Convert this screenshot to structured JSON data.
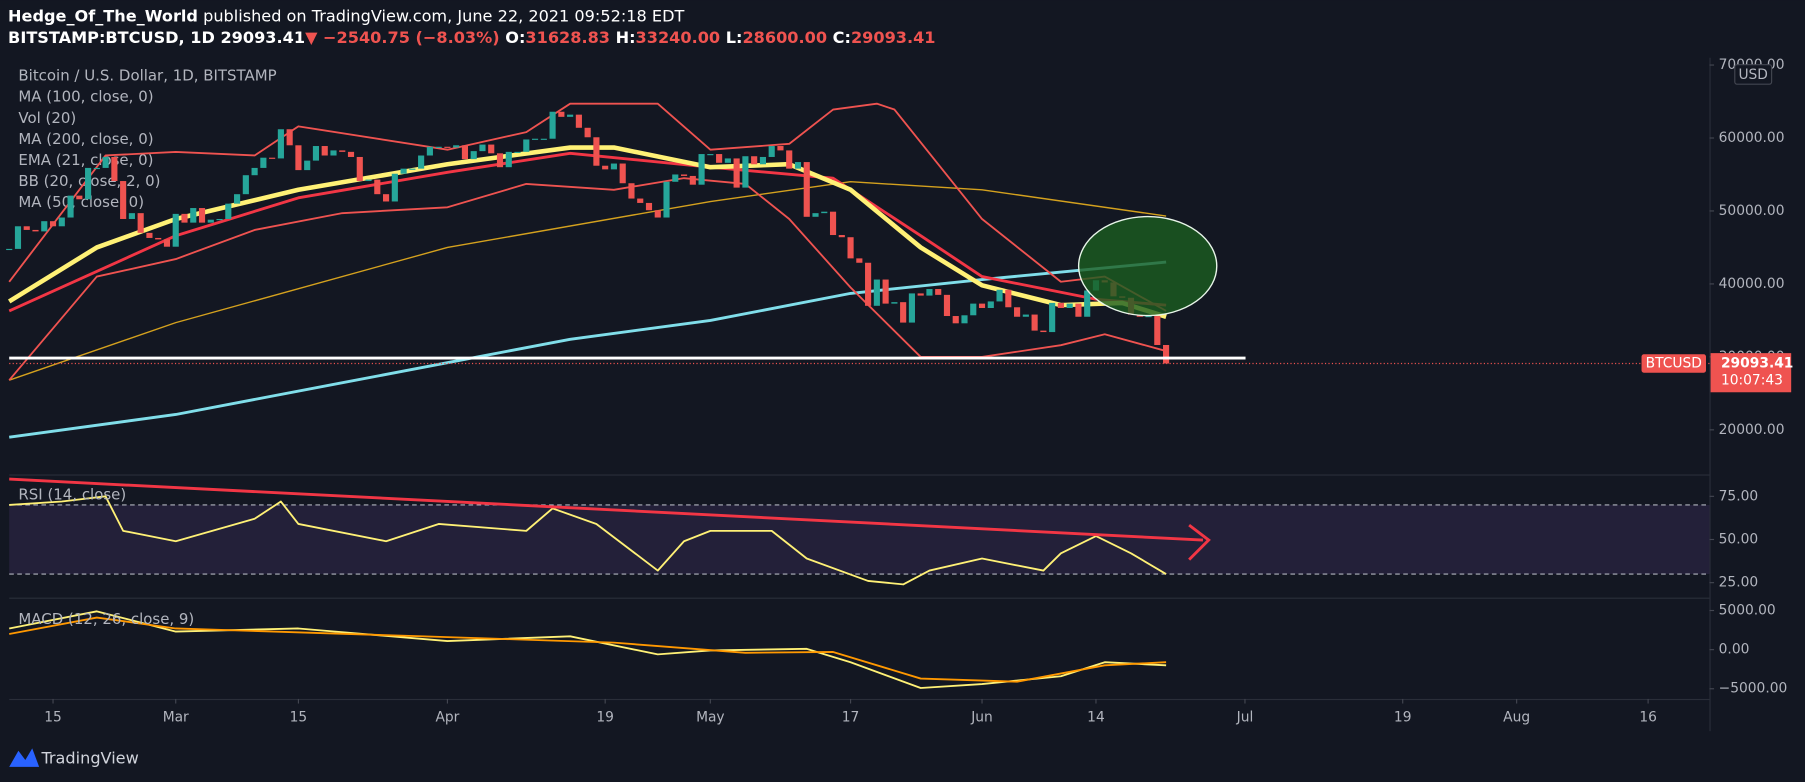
{
  "header": {
    "author": "Hedge_Of_The_World",
    "published": " published on TradingView.com, June 22, 2021 09:52:18 EDT",
    "symbol": "BITSTAMP:BTCUSD, 1D",
    "last": "29093.41",
    "change": "▼ −2540.75 (−8.03%)",
    "o_label": "O:",
    "o": "31628.83",
    "h_label": "H:",
    "h": "33240.00",
    "l_label": "L:",
    "l": "28600.00",
    "c_label": "C:",
    "c": "29093.41"
  },
  "footer": {
    "brand": "TradingView"
  },
  "chart_data": {
    "type": "candlestick",
    "legend": [
      "Bitcoin / U.S. Dollar, 1D, BITSTAMP",
      "MA (100, close, 0)",
      "Vol (20)",
      "MA (200, close, 0)",
      "EMA (21, close, 0)",
      "BB (20, close, 2, 0)",
      "MA (50, close, 0)"
    ],
    "currency": "USD",
    "price_tag": {
      "symbol": "BTCUSD",
      "value": 29093.41,
      "label": "29093.41",
      "countdown": "10:07:43"
    },
    "up_color": "#26a69a",
    "down_color": "#ef5350",
    "x": [
      "2021-02-10",
      "2021-02-11",
      "2021-02-12",
      "2021-02-13",
      "2021-02-14",
      "2021-02-15",
      "2021-02-16",
      "2021-02-17",
      "2021-02-18",
      "2021-02-19",
      "2021-02-20",
      "2021-02-21",
      "2021-02-22",
      "2021-02-23",
      "2021-02-24",
      "2021-02-25",
      "2021-02-26",
      "2021-02-27",
      "2021-02-28",
      "2021-03-01",
      "2021-03-02",
      "2021-03-03",
      "2021-03-04",
      "2021-03-05",
      "2021-03-06",
      "2021-03-07",
      "2021-03-08",
      "2021-03-09",
      "2021-03-10",
      "2021-03-11",
      "2021-03-12",
      "2021-03-13",
      "2021-03-14",
      "2021-03-15",
      "2021-03-16",
      "2021-03-17",
      "2021-03-18",
      "2021-03-19",
      "2021-03-20",
      "2021-03-21",
      "2021-03-22",
      "2021-03-23",
      "2021-03-24",
      "2021-03-25",
      "2021-03-26",
      "2021-03-27",
      "2021-03-28",
      "2021-03-29",
      "2021-03-30",
      "2021-03-31",
      "2021-04-01",
      "2021-04-02",
      "2021-04-03",
      "2021-04-04",
      "2021-04-05",
      "2021-04-06",
      "2021-04-07",
      "2021-04-08",
      "2021-04-09",
      "2021-04-10",
      "2021-04-11",
      "2021-04-12",
      "2021-04-13",
      "2021-04-14",
      "2021-04-15",
      "2021-04-16",
      "2021-04-17",
      "2021-04-18",
      "2021-04-19",
      "2021-04-20",
      "2021-04-21",
      "2021-04-22",
      "2021-04-23",
      "2021-04-24",
      "2021-04-25",
      "2021-04-26",
      "2021-04-27",
      "2021-04-28",
      "2021-04-29",
      "2021-04-30",
      "2021-05-01",
      "2021-05-02",
      "2021-05-03",
      "2021-05-04",
      "2021-05-05",
      "2021-05-06",
      "2021-05-07",
      "2021-05-08",
      "2021-05-09",
      "2021-05-10",
      "2021-05-11",
      "2021-05-12",
      "2021-05-13",
      "2021-05-14",
      "2021-05-15",
      "2021-05-16",
      "2021-05-17",
      "2021-05-18",
      "2021-05-19",
      "2021-05-20",
      "2021-05-21",
      "2021-05-22",
      "2021-05-23",
      "2021-05-24",
      "2021-05-25",
      "2021-05-26",
      "2021-05-27",
      "2021-05-28",
      "2021-05-29",
      "2021-05-30",
      "2021-05-31",
      "2021-06-01",
      "2021-06-02",
      "2021-06-03",
      "2021-06-04",
      "2021-06-05",
      "2021-06-06",
      "2021-06-07",
      "2021-06-08",
      "2021-06-09",
      "2021-06-10",
      "2021-06-11",
      "2021-06-12",
      "2021-06-13",
      "2021-06-14",
      "2021-06-15",
      "2021-06-16",
      "2021-06-17",
      "2021-06-18",
      "2021-06-19",
      "2021-06-20",
      "2021-06-21",
      "2021-06-22"
    ],
    "close": [
      44800,
      47900,
      47400,
      47200,
      48600,
      47900,
      49100,
      52100,
      51600,
      55900,
      55900,
      57400,
      54100,
      48900,
      49700,
      47000,
      46300,
      46100,
      45100,
      49600,
      48400,
      50400,
      48400,
      48800,
      48900,
      51000,
      52300,
      54900,
      55900,
      57300,
      57200,
      61200,
      59000,
      55600,
      56900,
      58900,
      57600,
      58300,
      58100,
      57400,
      54100,
      54300,
      52300,
      51300,
      55100,
      55800,
      55800,
      57600,
      58800,
      58800,
      58700,
      59000,
      57100,
      58200,
      59100,
      57900,
      56000,
      58100,
      58100,
      59800,
      59900,
      59900,
      63600,
      62900,
      63200,
      61400,
      60100,
      56200,
      55700,
      56500,
      53800,
      51700,
      51100,
      50100,
      49100,
      54000,
      55000,
      54800,
      53600,
      57800,
      57800,
      56600,
      57200,
      53200,
      57500,
      56400,
      57400,
      58900,
      58300,
      55800,
      56700,
      49200,
      49700,
      49900,
      46700,
      46400,
      43500,
      42900,
      37000,
      40600,
      37300,
      37500,
      34700,
      38700,
      38400,
      39300,
      38500,
      35600,
      34600,
      35700,
      37300,
      36700,
      37600,
      39200,
      36800,
      35500,
      35800,
      33600,
      33400,
      37400,
      36700,
      37300,
      35500,
      39100,
      40500,
      40200,
      38300,
      38100,
      35800,
      35500,
      35600,
      31628.83,
      29093.41
    ],
    "lines": [
      {
        "color": "#80deea",
        "width": 2.5,
        "x": [
          "2021-02-10",
          "2021-03-01",
          "2021-04-01",
          "2021-04-15",
          "2021-05-01",
          "2021-05-17",
          "2021-06-01",
          "2021-06-22"
        ],
        "values": [
          19000,
          22100,
          29200,
          32400,
          35000,
          38700,
          40600,
          43000
        ]
      },
      {
        "color": "#d4a11e",
        "width": 1.2,
        "x": [
          "2021-02-10",
          "2021-03-01",
          "2021-04-01",
          "2021-05-01",
          "2021-05-17",
          "2021-06-01",
          "2021-06-22"
        ],
        "values": [
          26800,
          34700,
          45000,
          51300,
          54000,
          52900,
          49300
        ]
      },
      {
        "color": "#ef5350",
        "width": 1.6,
        "x": [
          "2021-02-10",
          "2021-02-21",
          "2021-03-01",
          "2021-03-10",
          "2021-03-15",
          "2021-04-01",
          "2021-04-10",
          "2021-04-15",
          "2021-04-25",
          "2021-05-01",
          "2021-05-10",
          "2021-05-15",
          "2021-05-20",
          "2021-05-22",
          "2021-06-01",
          "2021-06-10",
          "2021-06-15",
          "2021-06-22"
        ],
        "values": [
          40300,
          57600,
          58100,
          57600,
          61600,
          58400,
          60800,
          64700,
          64700,
          58400,
          59200,
          63900,
          64700,
          63900,
          48900,
          40300,
          41000,
          36300
        ]
      },
      {
        "color": "#ef5350",
        "width": 1.6,
        "x": [
          "2021-02-10",
          "2021-02-20",
          "2021-03-01",
          "2021-03-10",
          "2021-03-20",
          "2021-04-01",
          "2021-04-10",
          "2021-04-20",
          "2021-04-28",
          "2021-05-05",
          "2021-05-10",
          "2021-05-17",
          "2021-05-25",
          "2021-06-01",
          "2021-06-10",
          "2021-06-15",
          "2021-06-22"
        ],
        "values": [
          26800,
          41000,
          43400,
          47400,
          49700,
          50500,
          53700,
          52900,
          54500,
          53700,
          48900,
          39500,
          30000,
          30000,
          31600,
          33100,
          30800
        ]
      },
      {
        "color": "#f23645",
        "width": 2.5,
        "x": [
          "2021-02-10",
          "2021-03-01",
          "2021-03-15",
          "2021-04-01",
          "2021-04-15",
          "2021-05-01",
          "2021-05-15",
          "2021-05-25",
          "2021-06-01",
          "2021-06-14",
          "2021-06-22"
        ],
        "values": [
          36300,
          46600,
          51800,
          55300,
          57900,
          56000,
          54500,
          46600,
          41000,
          37900,
          37100
        ]
      },
      {
        "color": "#fff176",
        "width": 4,
        "x": [
          "2021-02-10",
          "2021-02-20",
          "2021-03-01",
          "2021-03-15",
          "2021-04-01",
          "2021-04-15",
          "2021-04-20",
          "2021-05-01",
          "2021-05-10",
          "2021-05-17",
          "2021-05-25",
          "2021-06-01",
          "2021-06-10",
          "2021-06-17",
          "2021-06-22"
        ],
        "values": [
          37600,
          45000,
          48900,
          52900,
          56400,
          58700,
          58700,
          56000,
          56400,
          52900,
          45000,
          39800,
          37100,
          37400,
          35500
        ]
      }
    ],
    "support_level": 29830,
    "xlim": [
      "2021-02-10",
      "2021-08-23"
    ],
    "xticks": [
      {
        "value": "2021-02-15",
        "label": "15"
      },
      {
        "value": "2021-03-01",
        "label": "Mar"
      },
      {
        "value": "2021-03-15",
        "label": "15"
      },
      {
        "value": "2021-04-01",
        "label": "Apr"
      },
      {
        "value": "2021-04-19",
        "label": "19"
      },
      {
        "value": "2021-05-01",
        "label": "May"
      },
      {
        "value": "2021-05-17",
        "label": "17"
      },
      {
        "value": "2021-06-01",
        "label": "Jun"
      },
      {
        "value": "2021-06-14",
        "label": "14"
      },
      {
        "value": "2021-07-01",
        "label": "Jul"
      },
      {
        "value": "2021-07-19",
        "label": "19"
      },
      {
        "value": "2021-08-01",
        "label": "Aug"
      },
      {
        "value": "2021-08-16",
        "label": "16"
      }
    ],
    "ylim": [
      14200,
      71000
    ],
    "yticks": [
      {
        "value": 70000,
        "label": "70000.00"
      },
      {
        "value": 60000,
        "label": "60000.00"
      },
      {
        "value": 50000,
        "label": "50000.00"
      },
      {
        "value": 40000,
        "label": "40000.00"
      },
      {
        "value": 30000,
        "label": "30000.00"
      },
      {
        "value": 20000,
        "label": "20000.00"
      }
    ],
    "rsi": {
      "legend": "RSI (14, close)",
      "color": "#fff176",
      "band": [
        70,
        30
      ],
      "ylim": [
        17,
        87
      ],
      "yticks": [
        {
          "value": 75,
          "label": "75.00"
        },
        {
          "value": 50,
          "label": "50.00"
        },
        {
          "value": 25,
          "label": "25.00"
        }
      ],
      "x": [
        "2021-02-10",
        "2021-02-16",
        "2021-02-21",
        "2021-02-23",
        "2021-03-01",
        "2021-03-10",
        "2021-03-13",
        "2021-03-15",
        "2021-03-25",
        "2021-03-31",
        "2021-04-10",
        "2021-04-13",
        "2021-04-18",
        "2021-04-25",
        "2021-04-28",
        "2021-05-01",
        "2021-05-08",
        "2021-05-12",
        "2021-05-19",
        "2021-05-23",
        "2021-05-26",
        "2021-06-01",
        "2021-06-08",
        "2021-06-10",
        "2021-06-14",
        "2021-06-18",
        "2021-06-22"
      ],
      "values": [
        70,
        72,
        75,
        55,
        49,
        62,
        72,
        59,
        49,
        59,
        55,
        68,
        59,
        32,
        49,
        55,
        55,
        39,
        26,
        24,
        32,
        39,
        32,
        42,
        52,
        42,
        30
      ]
    },
    "macd": {
      "legend": "MACD (12, 26, close, 9)",
      "ylim": [
        -6300,
        6500
      ],
      "yticks": [
        {
          "value": 5000,
          "label": "5000.00"
        },
        {
          "value": 0,
          "label": "0.00"
        },
        {
          "value": -5000,
          "label": "−5000.00"
        }
      ],
      "series": [
        {
          "color": "#fff176",
          "x": [
            "2021-02-10",
            "2021-02-20",
            "2021-03-01",
            "2021-03-15",
            "2021-04-01",
            "2021-04-15",
            "2021-04-25",
            "2021-05-01",
            "2021-05-12",
            "2021-05-17",
            "2021-05-25",
            "2021-06-01",
            "2021-06-10",
            "2021-06-15",
            "2021-06-22"
          ],
          "values": [
            2700,
            4900,
            2300,
            2700,
            1100,
            1700,
            -600,
            -100,
            100,
            -1600,
            -4900,
            -4400,
            -3400,
            -1600,
            -2000
          ]
        },
        {
          "color": "#ff9800",
          "x": [
            "2021-02-10",
            "2021-02-20",
            "2021-03-01",
            "2021-04-01",
            "2021-04-20",
            "2021-05-05",
            "2021-05-15",
            "2021-05-25",
            "2021-06-05",
            "2021-06-15",
            "2021-06-22"
          ],
          "values": [
            2000,
            4100,
            2700,
            1600,
            900,
            -400,
            -300,
            -3700,
            -4100,
            -2000,
            -1600
          ]
        }
      ]
    }
  }
}
